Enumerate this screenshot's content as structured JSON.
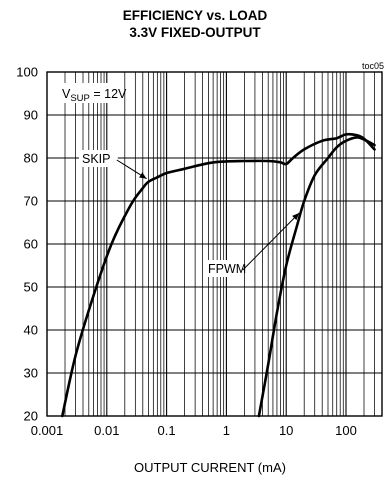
{
  "chart_data": {
    "type": "line",
    "title_line1": "EFFICIENCY vs. LOAD",
    "title_line2": "3.3V FIXED-OUTPUT",
    "figure_id": "toc05",
    "xlabel": "OUTPUT CURRENT (mA)",
    "ylabel": "",
    "x_scale": "log",
    "xlim": [
      0.001,
      400
    ],
    "ylim": [
      20,
      100
    ],
    "x_ticks": [
      0.001,
      0.01,
      0.1,
      1,
      10,
      100
    ],
    "x_tick_labels": [
      "0.001",
      "0.01",
      "0.1",
      "1",
      "10",
      "100"
    ],
    "y_ticks": [
      20,
      30,
      40,
      50,
      60,
      70,
      80,
      90,
      100
    ],
    "y_tick_labels": [
      "20",
      "30",
      "40",
      "50",
      "60",
      "70",
      "80",
      "90",
      "100"
    ],
    "grid": true,
    "condition_label": {
      "main": "V",
      "sub": "SUP",
      "rest": " = 12V"
    },
    "series": [
      {
        "name": "SKIP",
        "x": [
          0.0018,
          0.003,
          0.006,
          0.012,
          0.025,
          0.04,
          0.05,
          0.07,
          0.1,
          0.2,
          0.5,
          1,
          2,
          5,
          8,
          10,
          13,
          20,
          40,
          70,
          100,
          150,
          200,
          300
        ],
        "y": [
          20,
          34,
          48,
          60,
          69,
          73,
          74.5,
          75.5,
          76.5,
          77.5,
          78.8,
          79.2,
          79.3,
          79.3,
          79,
          78.6,
          80,
          82,
          84,
          84.6,
          85.5,
          85.3,
          84.5,
          82
        ]
      },
      {
        "name": "FPWM",
        "x": [
          3.5,
          5,
          7,
          10,
          15,
          20,
          30,
          50,
          70,
          100,
          150,
          200,
          300
        ],
        "y": [
          20,
          32,
          44,
          55,
          64,
          70,
          76,
          80,
          82.5,
          84,
          84.8,
          84.3,
          83
        ]
      }
    ]
  }
}
